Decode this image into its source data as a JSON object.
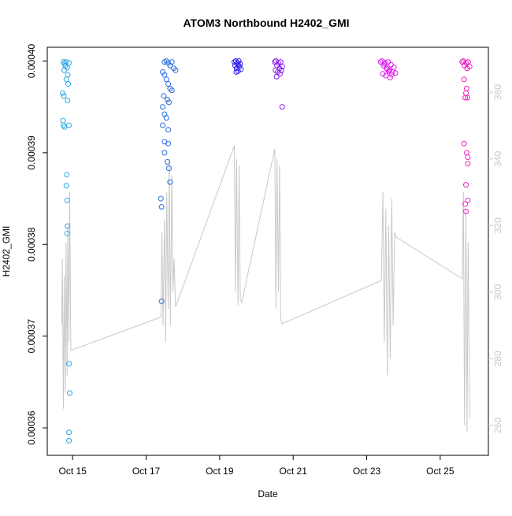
{
  "chart_data": {
    "type": "scatter",
    "title": "ATOM3 Northbound H2402_GMI",
    "x_label": "Date",
    "y_label": "H2402_GMI",
    "xlim": [
      14.31,
      26.31
    ],
    "xticks": [
      {
        "value": 15,
        "label": "Oct 15"
      },
      {
        "value": 17,
        "label": "Oct 17"
      },
      {
        "value": 19,
        "label": "Oct 19"
      },
      {
        "value": 21,
        "label": "Oct 21"
      },
      {
        "value": 23,
        "label": "Oct 23"
      },
      {
        "value": 25,
        "label": "Oct 25"
      }
    ],
    "ylim": [
      0.000357,
      0.0004015
    ],
    "yticks": [
      0.00036,
      0.00037,
      0.00038,
      0.00039,
      {
        "value": 0.0004,
        "label": "0.00040"
      }
    ],
    "y2lim": [
      251,
      373.5
    ],
    "y2ticks": [
      260,
      280,
      300,
      320,
      340,
      360
    ],
    "y2color": "#c8c8c8",
    "series": [
      {
        "type": "line",
        "axis": "y2",
        "color": "#c8c8c8",
        "x": [
          14.7,
          14.72,
          14.75,
          14.77,
          14.8,
          14.82,
          14.85,
          14.87,
          14.9,
          14.92,
          14.95,
          17.4,
          17.43,
          17.46,
          17.5,
          17.53,
          17.56,
          17.6,
          17.63,
          17.66,
          17.7,
          17.73,
          17.76,
          17.8,
          19.4,
          19.43,
          19.46,
          19.5,
          19.53,
          19.56,
          19.6,
          20.5,
          20.53,
          20.56,
          20.6,
          20.63,
          20.66,
          20.7,
          23.4,
          23.44,
          23.48,
          23.52,
          23.56,
          23.6,
          23.64,
          23.68,
          23.72,
          23.76,
          23.8,
          25.6,
          25.63,
          25.66,
          25.7,
          25.73,
          25.76,
          25.8
        ],
        "values": [
          290,
          310,
          265,
          305,
          270,
          315,
          275,
          320,
          285,
          330,
          282.5,
          292.5,
          318,
          290,
          322,
          285,
          330,
          295,
          340,
          290,
          335,
          300,
          310,
          295.5,
          344,
          300,
          340,
          296,
          338,
          298,
          297,
          343,
          295,
          340,
          300,
          338,
          292,
          290.5,
          303.5,
          330,
          285,
          325,
          275,
          320,
          280,
          328,
          290,
          318,
          316.5,
          304,
          330,
          260,
          325,
          258,
          315,
          262
        ]
      },
      {
        "type": "scatter",
        "color": "#29a8e8",
        "x": [
          14.75,
          14.78,
          14.8,
          14.82,
          14.85,
          14.87,
          14.9,
          14.77,
          14.83,
          14.88,
          14.73,
          14.76,
          14.86,
          14.74,
          14.75,
          14.78,
          14.9,
          14.84,
          14.83,
          14.85,
          14.86,
          14.85,
          14.9,
          14.92,
          14.9,
          14.9
        ],
        "values": [
          0.0003999,
          0.0003997,
          0.0003995,
          0.0003999,
          0.0003993,
          0.0003985,
          0.0003998,
          0.000399,
          0.000398,
          0.0003975,
          0.0003965,
          0.0003962,
          0.0003957,
          0.0003935,
          0.000393,
          0.0003928,
          0.000393,
          0.0003876,
          0.0003864,
          0.0003848,
          0.000382,
          0.0003812,
          0.000367,
          0.0003638,
          0.0003595,
          0.0003586
        ]
      },
      {
        "type": "scatter",
        "color": "#2a6ee0",
        "x": [
          17.5,
          17.55,
          17.6,
          17.65,
          17.7,
          17.75,
          17.8,
          17.45,
          17.5,
          17.55,
          17.6,
          17.65,
          17.7,
          17.48,
          17.58,
          17.62,
          17.45,
          17.5,
          17.55,
          17.45,
          17.6,
          17.5,
          17.6,
          17.5,
          17.58,
          17.62,
          17.65,
          17.4,
          17.42,
          17.42
        ],
        "values": [
          0.0003999,
          0.0004,
          0.0003998,
          0.0003995,
          0.0003999,
          0.0003992,
          0.000399,
          0.0003988,
          0.0003985,
          0.000398,
          0.0003975,
          0.000397,
          0.0003968,
          0.0003962,
          0.0003958,
          0.0003955,
          0.000395,
          0.0003942,
          0.0003938,
          0.000393,
          0.0003925,
          0.0003912,
          0.000391,
          0.00039,
          0.000389,
          0.0003883,
          0.0003868,
          0.000385,
          0.0003841,
          0.0003738
        ]
      },
      {
        "type": "scatter",
        "color": "#3020f0",
        "x": [
          19.4,
          19.42,
          19.44,
          19.46,
          19.48,
          19.5,
          19.52,
          19.54,
          19.56,
          19.58,
          19.45,
          19.5
        ],
        "values": [
          0.0003999,
          0.0003995,
          0.0004,
          0.0003992,
          0.0003998,
          0.0003989,
          0.0004,
          0.0003994,
          0.0003997,
          0.0003991,
          0.0003988,
          0.0003996
        ]
      },
      {
        "type": "scatter",
        "color": "#8a20ee",
        "x": [
          20.5,
          20.53,
          20.56,
          20.6,
          20.63,
          20.66,
          20.7,
          20.52,
          20.58,
          20.64,
          20.68,
          20.55,
          20.7
        ],
        "values": [
          0.0003999,
          0.0004,
          0.0003995,
          0.0003998,
          0.0003992,
          0.0003999,
          0.0003994,
          0.000399,
          0.0003988,
          0.0003986,
          0.000399,
          0.0003983,
          0.000395
        ]
      },
      {
        "type": "scatter",
        "color": "#e020f0",
        "x": [
          23.38,
          23.42,
          23.46,
          23.5,
          23.54,
          23.58,
          23.62,
          23.66,
          23.7,
          23.74,
          23.78,
          23.44,
          23.52,
          23.6,
          23.68,
          23.48,
          23.56,
          23.64
        ],
        "values": [
          0.0003999,
          0.0004,
          0.0003995,
          0.0003998,
          0.0003992,
          0.0003999,
          0.000399,
          0.0003996,
          0.0003988,
          0.0003993,
          0.0003987,
          0.0003986,
          0.0003984,
          0.0003989,
          0.0003985,
          0.0003997,
          0.0003991,
          0.0003982
        ]
      },
      {
        "type": "scatter",
        "color": "#f020c0",
        "x": [
          25.6,
          25.63,
          25.66,
          25.7,
          25.73,
          25.76,
          25.8,
          25.65,
          25.72,
          25.68,
          25.74,
          25.7,
          25.65,
          25.75,
          25.72,
          25.75,
          25.7,
          25.68,
          25.7,
          25.75
        ],
        "values": [
          0.0003999,
          0.0004,
          0.0003995,
          0.0003998,
          0.0003992,
          0.0003999,
          0.0003994,
          0.000398,
          0.000397,
          0.000396,
          0.000396,
          0.0003965,
          0.000391,
          0.0003888,
          0.00039,
          0.0003895,
          0.0003865,
          0.0003844,
          0.0003836,
          0.0003848
        ]
      }
    ]
  }
}
